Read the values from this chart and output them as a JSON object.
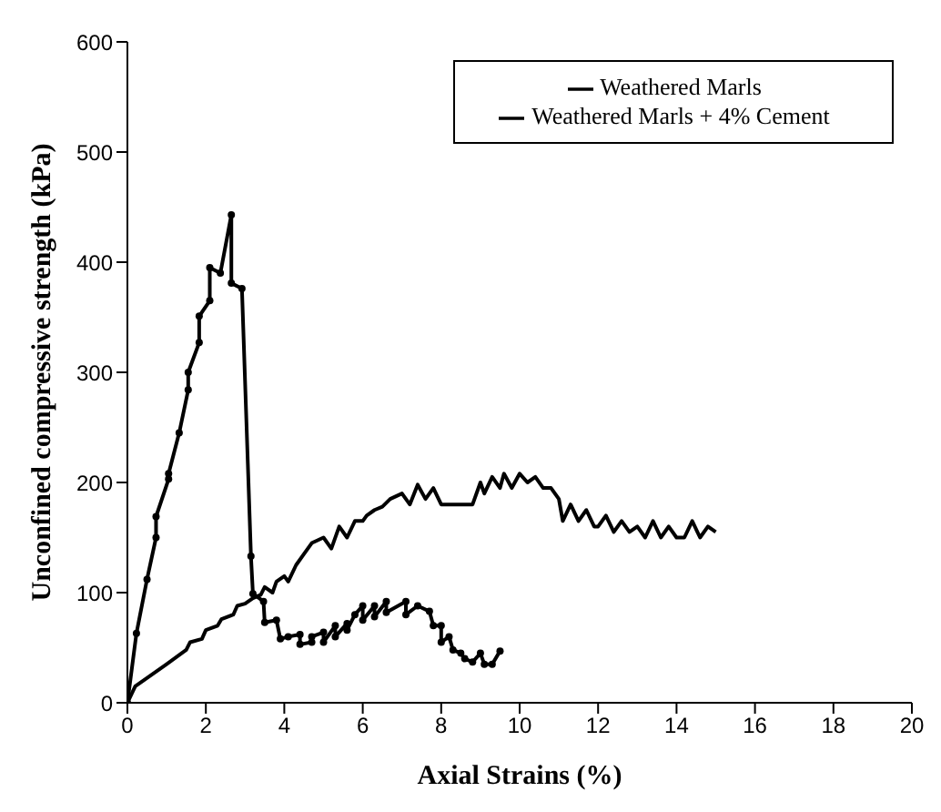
{
  "chart_data": {
    "type": "line",
    "xlabel": "Axial Strains (%)",
    "ylabel": "Unconfined compressive strength  (kPa)",
    "xlim": [
      0,
      20
    ],
    "xticks": [
      0,
      2,
      4,
      6,
      8,
      10,
      12,
      14,
      16,
      18,
      20
    ],
    "ylim": [
      0,
      600
    ],
    "yticks": [
      0,
      100,
      200,
      300,
      400,
      500,
      600
    ],
    "legend": "top right",
    "series": [
      {
        "name": "Weathered  Marls",
        "color": "#000000",
        "marker": "none",
        "x": [
          0,
          0.2,
          1,
          1.5,
          1.6,
          1.9,
          2,
          2.3,
          2.4,
          2.7,
          2.8,
          3,
          3.2,
          3.4,
          3.5,
          3.7,
          3.8,
          4,
          4.1,
          4.3,
          4.5,
          4.7,
          5,
          5.2,
          5.4,
          5.6,
          5.8,
          6,
          6.1,
          6.3,
          6.5,
          6.7,
          7,
          7.2,
          7.4,
          7.6,
          7.8,
          8,
          8.4,
          8.8,
          9,
          9.1,
          9.3,
          9.5,
          9.6,
          9.8,
          10,
          10.2,
          10.4,
          10.6,
          10.8,
          11,
          11.1,
          11.3,
          11.5,
          11.7,
          11.9,
          12,
          12.2,
          12.4,
          12.6,
          12.8,
          13,
          13.2,
          13.4,
          13.6,
          13.8,
          14,
          14.2,
          14.4,
          14.6,
          14.8,
          15
        ],
        "values": [
          0,
          15,
          35,
          48,
          55,
          58,
          66,
          70,
          76,
          80,
          88,
          90,
          95,
          98,
          105,
          100,
          110,
          115,
          110,
          125,
          135,
          145,
          150,
          140,
          160,
          150,
          165,
          165,
          170,
          175,
          178,
          185,
          190,
          180,
          198,
          185,
          195,
          180,
          180,
          180,
          200,
          190,
          205,
          195,
          208,
          195,
          208,
          200,
          205,
          195,
          195,
          185,
          165,
          180,
          165,
          175,
          160,
          160,
          170,
          155,
          165,
          155,
          160,
          150,
          165,
          150,
          160,
          150,
          150,
          165,
          150,
          160,
          155
        ]
      },
      {
        "name": "Weathered Marls + 4% Cement",
        "color": "#000000",
        "marker": "circle",
        "x": [
          0,
          0.23,
          0.5,
          0.73,
          0.73,
          1.05,
          1.05,
          1.32,
          1.55,
          1.55,
          1.83,
          1.83,
          2.1,
          2.1,
          2.37,
          2.65,
          2.65,
          2.92,
          3.15,
          3.2,
          3.47,
          3.5,
          3.8,
          3.9,
          4.1,
          4.4,
          4.4,
          4.7,
          4.7,
          5,
          5,
          5.3,
          5.3,
          5.6,
          5.6,
          5.8,
          6,
          6,
          6.3,
          6.3,
          6.6,
          6.6,
          7.1,
          7.1,
          7.4,
          7.7,
          7.8,
          8,
          8,
          8.2,
          8.3,
          8.5,
          8.6,
          8.8,
          9,
          9.1,
          9.3,
          9.5
        ],
        "values": [
          0,
          63,
          112,
          150,
          169,
          203,
          208,
          245,
          284,
          300,
          327,
          351,
          365,
          395,
          390,
          443,
          381,
          376,
          133,
          99,
          92,
          73,
          75,
          58,
          60,
          62,
          53,
          55,
          60,
          64,
          55,
          70,
          60,
          72,
          66,
          80,
          88,
          75,
          88,
          78,
          92,
          82,
          92,
          80,
          88,
          83,
          70,
          70,
          55,
          60,
          48,
          45,
          40,
          37,
          45,
          35,
          35,
          47
        ]
      }
    ]
  }
}
